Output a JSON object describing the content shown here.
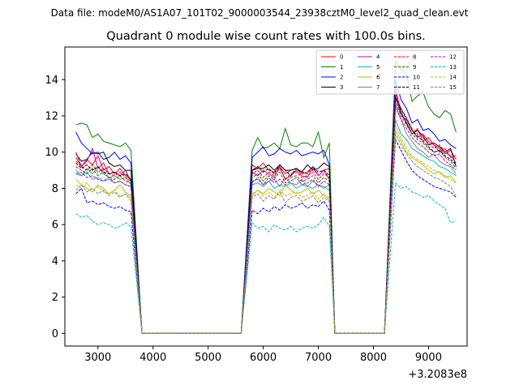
{
  "header": {
    "data_file": "Data file: modeM0/AS1A07_101T02_9000003544_23938cztM0_level2_quad_clean.evt"
  },
  "chart_data": {
    "type": "line",
    "title": "Quadrant 0 module wise count rates with 100.0s bins.",
    "xlabel": "",
    "ylabel": "",
    "x_offset_label": "+3.2083e8",
    "xlim": [
      2400,
      9700
    ],
    "ylim": [
      -0.7,
      15.8
    ],
    "xticks": [
      3000,
      4000,
      5000,
      6000,
      7000,
      8000,
      9000
    ],
    "xtick_labels": [
      "3000",
      "4000",
      "5000",
      "6000",
      "7000",
      "8000",
      "9000"
    ],
    "yticks": [
      0,
      2,
      4,
      6,
      8,
      10,
      12,
      14
    ],
    "ytick_labels": [
      "0",
      "2",
      "4",
      "6",
      "8",
      "10",
      "12",
      "14"
    ],
    "grid": false,
    "legend_position": "top-right",
    "segments": [
      {
        "x_start": 2600,
        "x_end": 3600
      },
      {
        "x_start": 5800,
        "x_end": 7200
      },
      {
        "x_start": 8400,
        "x_end": 9500
      }
    ],
    "gap_ranges": [
      [
        3800,
        5600
      ],
      [
        7300,
        8200
      ]
    ],
    "series": [
      {
        "name": "0",
        "color": "#ff0000",
        "dash": false,
        "seg": [
          [
            9.7,
            9.2,
            9.6,
            9.3,
            9.8,
            9.0,
            9.2,
            8.8,
            9.1,
            8.7,
            8.5
          ],
          [
            9.3,
            9.1,
            9.4,
            9.0,
            8.9,
            9.2,
            8.8,
            9.0,
            9.1,
            8.8,
            8.9,
            9.2,
            8.7,
            9.0,
            9.1
          ],
          [
            13.5,
            12.2,
            11.6,
            11.0,
            11.3,
            10.6,
            10.8,
            10.4,
            10.2,
            9.9,
            10.1,
            9.6
          ]
        ]
      },
      {
        "name": "1",
        "color": "#008000",
        "dash": false,
        "seg": [
          [
            11.5,
            11.6,
            11.5,
            10.8,
            11.0,
            10.6,
            10.5,
            10.4,
            10.3,
            10.5,
            10.1
          ],
          [
            10.1,
            10.8,
            10.2,
            10.3,
            10.5,
            10.2,
            11.3,
            10.4,
            10.3,
            10.5,
            10.5,
            10.3,
            11.1,
            9.7,
            10.5
          ],
          [
            15.0,
            14.6,
            14.3,
            12.8,
            13.1,
            13.3,
            12.5,
            12.1,
            11.9,
            12.3,
            12.1,
            11.1
          ]
        ]
      },
      {
        "name": "2",
        "color": "#0000ff",
        "dash": false,
        "seg": [
          [
            11.1,
            10.5,
            10.2,
            9.9,
            10.0,
            9.6,
            9.7,
            10.0,
            9.6,
            9.8,
            9.4
          ],
          [
            9.7,
            10.0,
            10.3,
            9.8,
            9.9,
            10.2,
            10.0,
            9.9,
            10.1,
            9.8,
            9.9,
            10.0,
            9.9,
            10.1,
            9.3
          ],
          [
            14.0,
            12.9,
            12.4,
            11.6,
            11.8,
            11.2,
            11.3,
            11.0,
            10.6,
            10.7,
            10.4,
            10.2
          ]
        ]
      },
      {
        "name": "3",
        "color": "#000000",
        "dash": false,
        "seg": [
          [
            9.9,
            9.5,
            9.6,
            10.0,
            9.9,
            10.0,
            9.4,
            9.2,
            9.3,
            9.0,
            9.0
          ],
          [
            9.0,
            9.1,
            9.1,
            9.3,
            9.0,
            9.3,
            9.0,
            9.0,
            9.1,
            8.9,
            9.3,
            9.0,
            9.1,
            9.4,
            9.2
          ],
          [
            13.0,
            12.2,
            11.6,
            11.0,
            11.2,
            10.9,
            10.4,
            10.5,
            10.3,
            10.0,
            10.2,
            9.2
          ]
        ]
      },
      {
        "name": "4",
        "color": "#bf00bf",
        "dash": false,
        "seg": [
          [
            10.0,
            9.2,
            9.5,
            10.2,
            9.1,
            9.4,
            8.8,
            8.9,
            8.7,
            9.0,
            8.4
          ],
          [
            8.9,
            8.7,
            9.0,
            8.8,
            8.6,
            9.2,
            8.5,
            8.7,
            9.0,
            8.7,
            8.6,
            9.1,
            8.7,
            9.0,
            8.5
          ],
          [
            13.2,
            12.0,
            11.8,
            11.2,
            10.8,
            11.0,
            10.6,
            10.4,
            10.0,
            10.2,
            9.7,
            9.8
          ]
        ]
      },
      {
        "name": "5",
        "color": "#00bfbf",
        "dash": false,
        "seg": [
          [
            8.8,
            8.7,
            8.9,
            8.5,
            8.6,
            8.4,
            8.5,
            8.3,
            8.4,
            8.2,
            8.1
          ],
          [
            8.2,
            8.3,
            8.1,
            8.4,
            8.0,
            8.2,
            8.1,
            8.3,
            8.0,
            8.2,
            8.1,
            8.0,
            8.2,
            8.1,
            7.9
          ],
          [
            11.8,
            11.0,
            10.7,
            10.2,
            10.0,
            9.8,
            9.6,
            9.5,
            9.2,
            9.1,
            8.9,
            8.7
          ]
        ]
      },
      {
        "name": "6",
        "color": "#bfbf00",
        "dash": false,
        "seg": [
          [
            8.5,
            8.2,
            8.0,
            7.8,
            8.2,
            8.0,
            7.7,
            7.9,
            8.2,
            7.8,
            7.6
          ],
          [
            7.6,
            7.9,
            7.7,
            8.0,
            7.8,
            7.6,
            8.2,
            7.9,
            7.7,
            7.8,
            8.0,
            7.7,
            7.9,
            7.6,
            7.4
          ],
          [
            11.2,
            10.6,
            10.0,
            9.7,
            9.5,
            9.3,
            9.0,
            8.8,
            8.9,
            8.6,
            8.7,
            8.3
          ]
        ]
      },
      {
        "name": "7",
        "color": "#808080",
        "dash": false,
        "seg": [
          [
            9.0,
            8.7,
            9.1,
            8.8,
            9.2,
            8.8,
            8.6,
            8.7,
            8.5,
            8.6,
            8.2
          ],
          [
            8.3,
            8.6,
            8.2,
            8.4,
            8.5,
            8.1,
            8.6,
            8.3,
            8.2,
            8.5,
            8.1,
            8.4,
            8.2,
            8.0,
            8.2
          ],
          [
            12.5,
            11.8,
            11.0,
            10.6,
            10.2,
            10.0,
            9.7,
            9.9,
            9.5,
            9.3,
            9.2,
            8.8
          ]
        ]
      },
      {
        "name": "8",
        "color": "#ff0000",
        "dash": true,
        "seg": [
          [
            9.5,
            9.2,
            9.0,
            9.3,
            8.9,
            9.1,
            8.8,
            8.7,
            8.9,
            8.6,
            8.4
          ],
          [
            8.8,
            9.0,
            8.6,
            8.9,
            8.7,
            9.1,
            8.5,
            8.8,
            8.9,
            8.6,
            8.7,
            8.9,
            8.5,
            8.8,
            8.6
          ],
          [
            13.2,
            12.4,
            11.9,
            11.3,
            11.0,
            10.8,
            10.5,
            10.2,
            10.4,
            10.0,
            9.8,
            9.4
          ]
        ]
      },
      {
        "name": "9",
        "color": "#008000",
        "dash": true,
        "seg": [
          [
            9.2,
            9.0,
            8.8,
            9.1,
            8.7,
            8.9,
            8.6,
            8.5,
            8.7,
            8.4,
            8.3
          ],
          [
            8.6,
            8.8,
            8.4,
            8.7,
            8.5,
            8.9,
            8.3,
            8.6,
            8.7,
            8.4,
            8.5,
            8.7,
            8.3,
            8.6,
            8.4
          ],
          [
            12.8,
            12.0,
            11.5,
            11.0,
            10.7,
            10.5,
            10.2,
            10.0,
            10.1,
            9.7,
            9.5,
            9.1
          ]
        ]
      },
      {
        "name": "10",
        "color": "#0000ff",
        "dash": true,
        "seg": [
          [
            7.7,
            8.0,
            7.2,
            7.3,
            7.1,
            7.2,
            7.0,
            6.9,
            7.0,
            6.8,
            6.7
          ],
          [
            6.8,
            6.6,
            6.9,
            6.7,
            7.0,
            6.8,
            7.1,
            6.9,
            7.0,
            7.2,
            6.9,
            7.1,
            7.0,
            7.3,
            6.8
          ],
          [
            10.7,
            10.1,
            9.5,
            9.0,
            8.7,
            8.5,
            8.3,
            8.1,
            8.0,
            7.9,
            7.8,
            7.5
          ]
        ]
      },
      {
        "name": "11",
        "color": "#000000",
        "dash": true,
        "seg": [
          [
            9.4,
            9.1,
            9.3,
            9.0,
            9.2,
            8.9,
            8.8,
            8.9,
            8.7,
            8.8,
            8.5
          ],
          [
            9.0,
            9.2,
            8.9,
            9.1,
            8.8,
            9.3,
            9.0,
            8.7,
            9.1,
            8.9,
            8.8,
            9.2,
            8.9,
            9.0,
            8.7
          ],
          [
            13.0,
            12.4,
            11.8,
            11.2,
            10.9,
            10.6,
            10.3,
            10.0,
            10.1,
            9.8,
            9.6,
            9.3
          ]
        ]
      },
      {
        "name": "12",
        "color": "#bf00bf",
        "dash": true,
        "seg": [
          [
            8.8,
            8.9,
            8.6,
            8.7,
            8.5,
            8.4,
            8.6,
            8.3,
            8.4,
            8.2,
            8.1
          ],
          [
            8.4,
            8.5,
            8.2,
            8.6,
            8.3,
            8.5,
            8.2,
            8.4,
            8.6,
            8.2,
            8.3,
            8.5,
            8.1,
            8.4,
            8.2
          ],
          [
            12.6,
            11.8,
            11.3,
            10.8,
            10.5,
            10.3,
            10.0,
            9.8,
            9.9,
            9.5,
            9.3,
            9.0
          ]
        ]
      },
      {
        "name": "13",
        "color": "#00bfbf",
        "dash": true,
        "seg": [
          [
            6.6,
            6.4,
            6.5,
            6.2,
            6.0,
            6.1,
            6.0,
            5.8,
            5.9,
            6.1,
            5.9
          ],
          [
            6.1,
            5.8,
            5.9,
            5.6,
            6.0,
            5.8,
            5.7,
            5.9,
            5.6,
            5.8,
            5.9,
            5.8,
            6.0,
            6.4,
            5.9
          ],
          [
            8.3,
            8.0,
            8.1,
            7.8,
            7.7,
            7.5,
            7.6,
            7.3,
            7.1,
            6.9,
            6.1,
            6.2
          ]
        ]
      },
      {
        "name": "14",
        "color": "#bfbf00",
        "dash": true,
        "seg": [
          [
            8.2,
            8.0,
            8.3,
            7.9,
            8.1,
            7.8,
            7.7,
            7.9,
            7.6,
            7.7,
            7.5
          ],
          [
            7.7,
            7.9,
            7.6,
            7.8,
            7.5,
            7.9,
            7.6,
            7.7,
            7.8,
            7.5,
            7.6,
            7.8,
            7.4,
            7.7,
            7.5
          ],
          [
            11.5,
            10.8,
            10.2,
            9.8,
            9.6,
            9.4,
            9.2,
            9.0,
            8.9,
            8.7,
            8.5,
            8.3
          ]
        ]
      },
      {
        "name": "15",
        "color": "#808080",
        "dash": true,
        "seg": [
          [
            7.9,
            8.2,
            7.8,
            8.0,
            7.7,
            7.9,
            7.6,
            7.8,
            7.5,
            7.7,
            7.3
          ],
          [
            7.5,
            7.7,
            7.3,
            7.6,
            7.4,
            7.8,
            7.2,
            7.5,
            7.6,
            7.3,
            7.4,
            7.6,
            7.2,
            7.5,
            7.3
          ],
          [
            11.0,
            10.4,
            9.9,
            9.5,
            9.2,
            9.0,
            8.8,
            8.6,
            8.5,
            8.3,
            8.1,
            7.6
          ]
        ]
      }
    ]
  }
}
